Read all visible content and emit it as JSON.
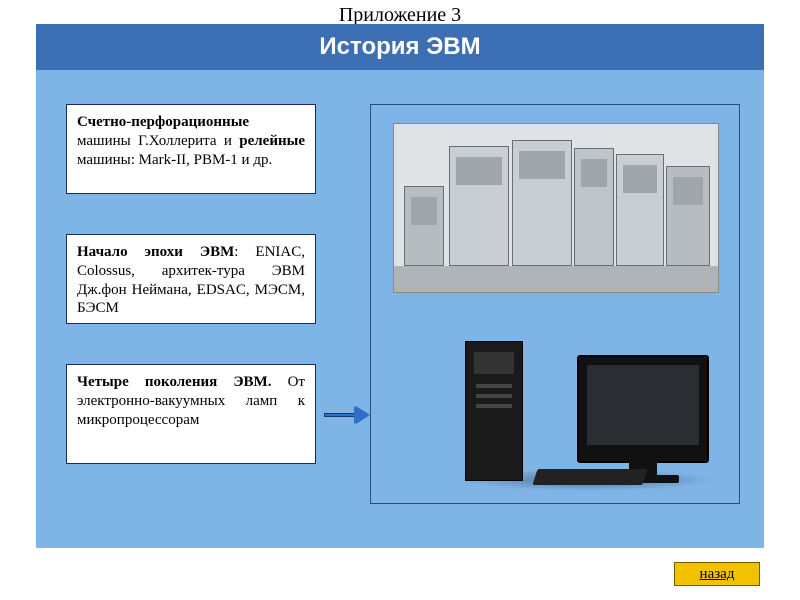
{
  "appendix_label": "Приложение 3",
  "slide": {
    "title": "История ЭВМ",
    "colors": {
      "slide_bg": "#7fb4e6",
      "title_bg": "#3d6fb5",
      "title_fg": "#ffffff",
      "card_bg": "#ffffff",
      "card_border": "#1a2a5a",
      "arrow_fill": "#2e6fc9",
      "arrow_border": "#1a3a6a",
      "nav_bg": "#f2c200",
      "nav_border": "#7a5b00"
    },
    "cards": [
      {
        "title_bold": "Счетно-перфорационные",
        "rest": " машины Г.Холлерита и ",
        "bold2": "релейные",
        "tail": " машины: Mark-II, РВМ-1 и др."
      },
      {
        "title_bold": "Начало эпохи ЭВМ",
        "rest": ": ENIAC, Colossus, архитек-тура ЭВМ Дж.фон Неймана, EDSAC, МЭСМ, БЭСМ"
      },
      {
        "title_bold": "Четыре поколения ЭВМ.",
        "rest": " От электронно-вакуумных ламп к микропроцессорам"
      }
    ],
    "right_panel": {
      "images": [
        {
          "name": "mainframe-photo",
          "desc": "large early computer room (mainframe cabinets)"
        },
        {
          "name": "modern-pc-photo",
          "desc": "modern desktop tower, LCD monitor, keyboard"
        }
      ]
    },
    "nav": {
      "back_label": "назад"
    }
  }
}
